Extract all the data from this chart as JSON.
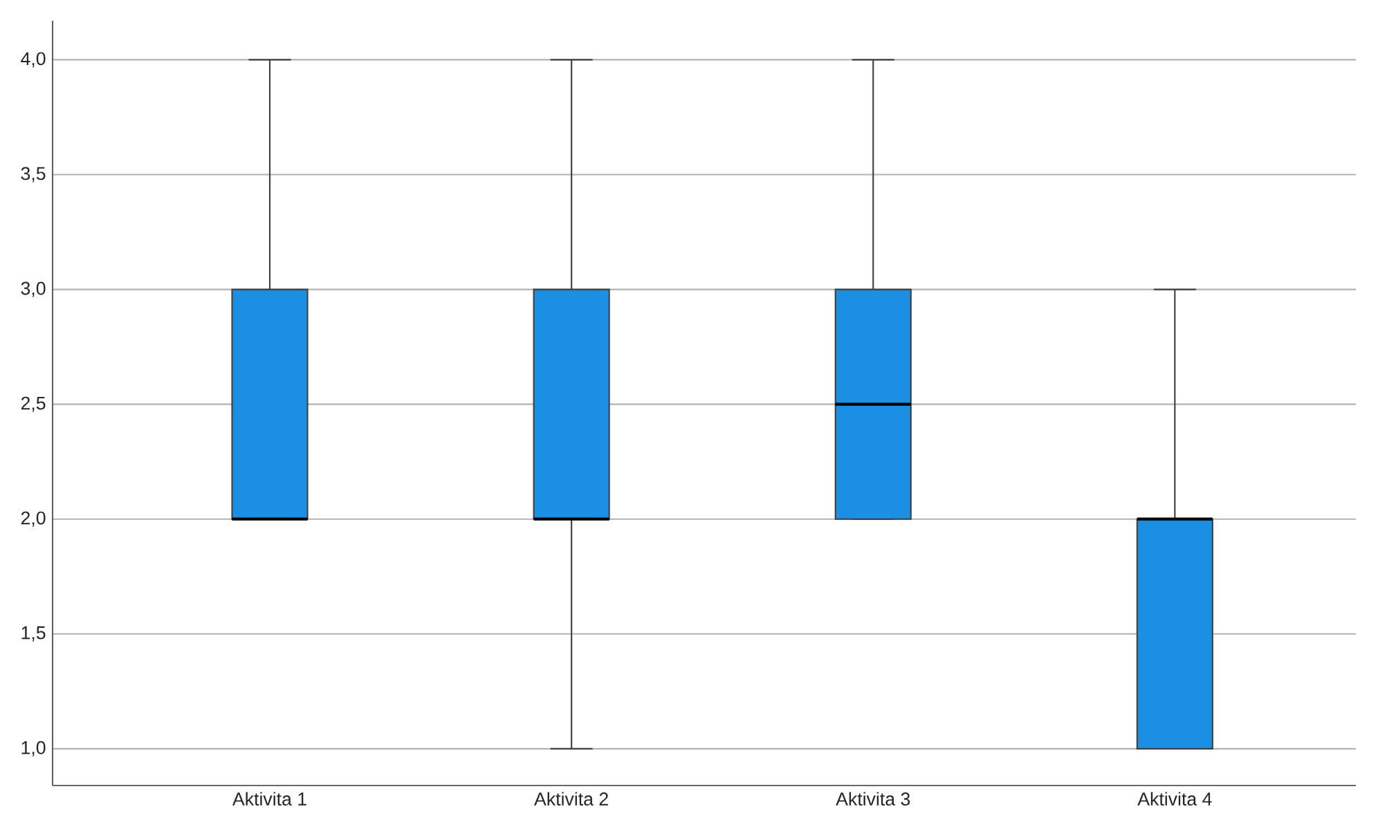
{
  "chart_data": {
    "type": "box",
    "categories": [
      "Aktivita 1",
      "Aktivita 2",
      "Aktivita 3",
      "Aktivita 4"
    ],
    "boxes": [
      {
        "low": 2,
        "q1": 2,
        "median": 2,
        "q3": 3,
        "high": 4
      },
      {
        "low": 1,
        "q1": 2,
        "median": 2,
        "q3": 3,
        "high": 4
      },
      {
        "low": 2,
        "q1": 2,
        "median": 2.5,
        "q3": 3,
        "high": 4
      },
      {
        "low": 1,
        "q1": 1,
        "median": 2,
        "q3": 2,
        "high": 3
      }
    ],
    "color": "#1a8fe3",
    "ylim": [
      0.84,
      4.17
    ],
    "yticks": [
      {
        "value": 1,
        "label": "1,0"
      },
      {
        "value": 1.5,
        "label": "1,5"
      },
      {
        "value": 2,
        "label": "2,0"
      },
      {
        "value": 2.5,
        "label": "2,5"
      },
      {
        "value": 3,
        "label": "3,0"
      },
      {
        "value": 3.5,
        "label": "3,5"
      },
      {
        "value": 4,
        "label": "4,0"
      }
    ],
    "grid": "y"
  }
}
